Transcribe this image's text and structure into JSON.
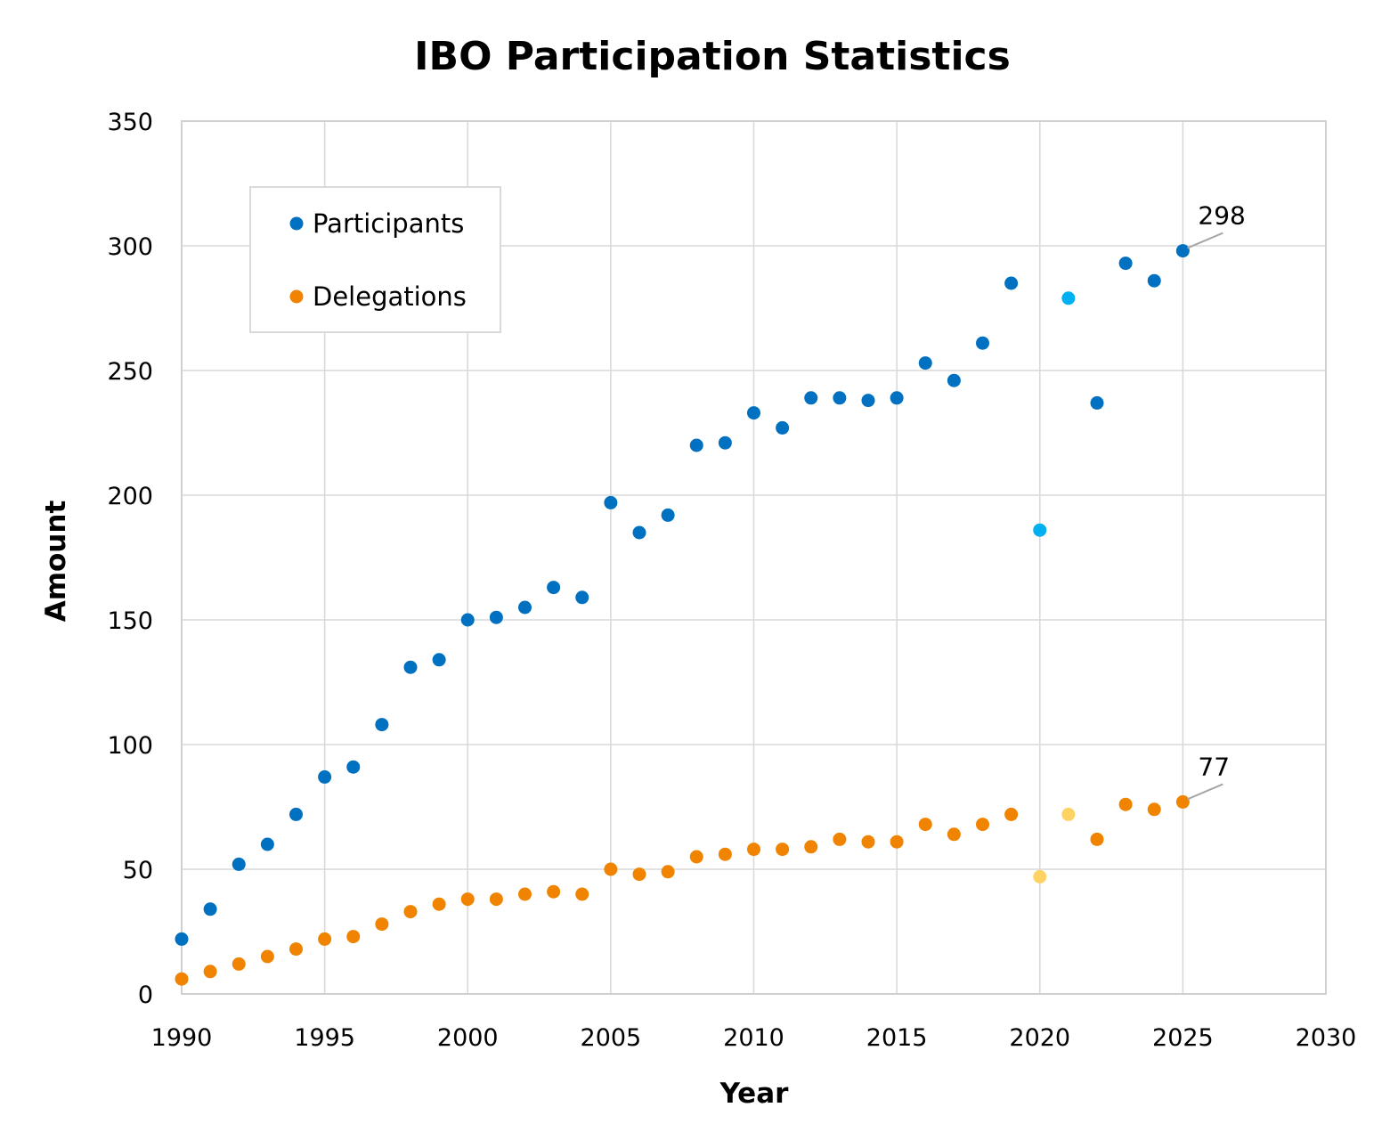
{
  "chart_data": {
    "type": "scatter",
    "title": "IBO Participation Statistics",
    "xlabel": "Year",
    "ylabel": "Amount",
    "xlim": [
      1990,
      2030
    ],
    "ylim": [
      0,
      350
    ],
    "x_ticks": [
      1990,
      1995,
      2000,
      2005,
      2010,
      2015,
      2020,
      2025,
      2030
    ],
    "y_ticks": [
      0,
      50,
      100,
      150,
      200,
      250,
      300,
      350
    ],
    "grid": true,
    "legend": {
      "position": "top-left"
    },
    "series": [
      {
        "name": "Participants",
        "color": "#0070C0",
        "highlight_color": "#00B0F0",
        "points": [
          {
            "x": 1990,
            "y": 22
          },
          {
            "x": 1991,
            "y": 34
          },
          {
            "x": 1992,
            "y": 52
          },
          {
            "x": 1993,
            "y": 60
          },
          {
            "x": 1994,
            "y": 72
          },
          {
            "x": 1995,
            "y": 87
          },
          {
            "x": 1996,
            "y": 91
          },
          {
            "x": 1997,
            "y": 108
          },
          {
            "x": 1998,
            "y": 131
          },
          {
            "x": 1999,
            "y": 134
          },
          {
            "x": 2000,
            "y": 150
          },
          {
            "x": 2001,
            "y": 151
          },
          {
            "x": 2002,
            "y": 155
          },
          {
            "x": 2003,
            "y": 163
          },
          {
            "x": 2004,
            "y": 159
          },
          {
            "x": 2005,
            "y": 197
          },
          {
            "x": 2006,
            "y": 185
          },
          {
            "x": 2007,
            "y": 192
          },
          {
            "x": 2008,
            "y": 220
          },
          {
            "x": 2009,
            "y": 221
          },
          {
            "x": 2010,
            "y": 233
          },
          {
            "x": 2011,
            "y": 227
          },
          {
            "x": 2012,
            "y": 239
          },
          {
            "x": 2013,
            "y": 239
          },
          {
            "x": 2014,
            "y": 238
          },
          {
            "x": 2015,
            "y": 239
          },
          {
            "x": 2016,
            "y": 253
          },
          {
            "x": 2017,
            "y": 246
          },
          {
            "x": 2018,
            "y": 261
          },
          {
            "x": 2019,
            "y": 285
          },
          {
            "x": 2020,
            "y": 186,
            "highlight": true
          },
          {
            "x": 2021,
            "y": 279,
            "highlight": true
          },
          {
            "x": 2022,
            "y": 237
          },
          {
            "x": 2023,
            "y": 293
          },
          {
            "x": 2024,
            "y": 286
          },
          {
            "x": 2025,
            "y": 298,
            "label": "298"
          }
        ]
      },
      {
        "name": "Delegations",
        "color": "#F08300",
        "highlight_color": "#FFD264",
        "points": [
          {
            "x": 1990,
            "y": 6
          },
          {
            "x": 1991,
            "y": 9
          },
          {
            "x": 1992,
            "y": 12
          },
          {
            "x": 1993,
            "y": 15
          },
          {
            "x": 1994,
            "y": 18
          },
          {
            "x": 1995,
            "y": 22
          },
          {
            "x": 1996,
            "y": 23
          },
          {
            "x": 1997,
            "y": 28
          },
          {
            "x": 1998,
            "y": 33
          },
          {
            "x": 1999,
            "y": 36
          },
          {
            "x": 2000,
            "y": 38
          },
          {
            "x": 2001,
            "y": 38
          },
          {
            "x": 2002,
            "y": 40
          },
          {
            "x": 2003,
            "y": 41
          },
          {
            "x": 2004,
            "y": 40
          },
          {
            "x": 2005,
            "y": 50
          },
          {
            "x": 2006,
            "y": 48
          },
          {
            "x": 2007,
            "y": 49
          },
          {
            "x": 2008,
            "y": 55
          },
          {
            "x": 2009,
            "y": 56
          },
          {
            "x": 2010,
            "y": 58
          },
          {
            "x": 2011,
            "y": 58
          },
          {
            "x": 2012,
            "y": 59
          },
          {
            "x": 2013,
            "y": 62
          },
          {
            "x": 2014,
            "y": 61
          },
          {
            "x": 2015,
            "y": 61
          },
          {
            "x": 2016,
            "y": 68
          },
          {
            "x": 2017,
            "y": 64
          },
          {
            "x": 2018,
            "y": 68
          },
          {
            "x": 2019,
            "y": 72
          },
          {
            "x": 2020,
            "y": 47,
            "highlight": true
          },
          {
            "x": 2021,
            "y": 72,
            "highlight": true
          },
          {
            "x": 2022,
            "y": 62
          },
          {
            "x": 2023,
            "y": 76
          },
          {
            "x": 2024,
            "y": 74
          },
          {
            "x": 2025,
            "y": 77,
            "label": "77"
          }
        ]
      }
    ]
  }
}
